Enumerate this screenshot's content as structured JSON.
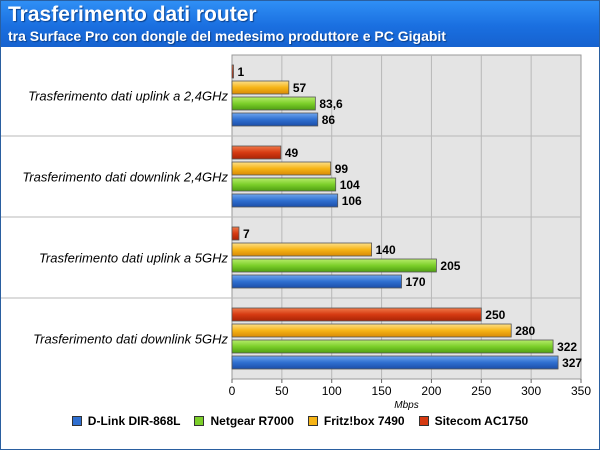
{
  "header": {
    "title": "Trasferimento dati router",
    "subtitle": "tra Surface Pro con dongle del medesimo produttore e PC Gigabit"
  },
  "colors": {
    "header_bg": "#1a6fe0",
    "plot_bg": "#e4e4e4",
    "D-Link DIR-868L": "#2f6fd0",
    "Netgear R7000": "#7ccf2a",
    "Fritz!box 7490": "#f6b416",
    "Sitecom AC1750": "#d63a12"
  },
  "chart_data": {
    "type": "bar",
    "orientation": "horizontal",
    "title": "Trasferimento dati router",
    "subtitle": "tra Surface Pro con dongle del medesimo produttore e PC Gigabit",
    "xlabel": "Mbps",
    "ylabel": "",
    "xlim": [
      0,
      350
    ],
    "xticks": [
      "0",
      "50",
      "100",
      "150",
      "200",
      "250",
      "300",
      "350"
    ],
    "grid": true,
    "legend_position": "bottom",
    "categories": [
      "Trasferimento dati uplink a 2,4GHz",
      "Trasferimento dati downlink 2,4GHz",
      "Trasferimento dati uplink a 5GHz",
      "Trasferimento dati downlink 5GHz"
    ],
    "series": [
      {
        "name": "D-Link DIR-868L",
        "values": [
          86,
          106,
          170,
          327
        ],
        "labels": [
          "86",
          "106",
          "170",
          "327"
        ]
      },
      {
        "name": "Netgear R7000",
        "values": [
          83.6,
          104,
          205,
          322
        ],
        "labels": [
          "83,6",
          "104",
          "205",
          "322"
        ]
      },
      {
        "name": "Fritz!box 7490",
        "values": [
          57,
          99,
          140,
          280
        ],
        "labels": [
          "57",
          "99",
          "140",
          "280"
        ]
      },
      {
        "name": "Sitecom AC1750",
        "values": [
          1,
          49,
          7,
          250
        ],
        "labels": [
          "1",
          "49",
          "7",
          "250"
        ]
      }
    ]
  }
}
